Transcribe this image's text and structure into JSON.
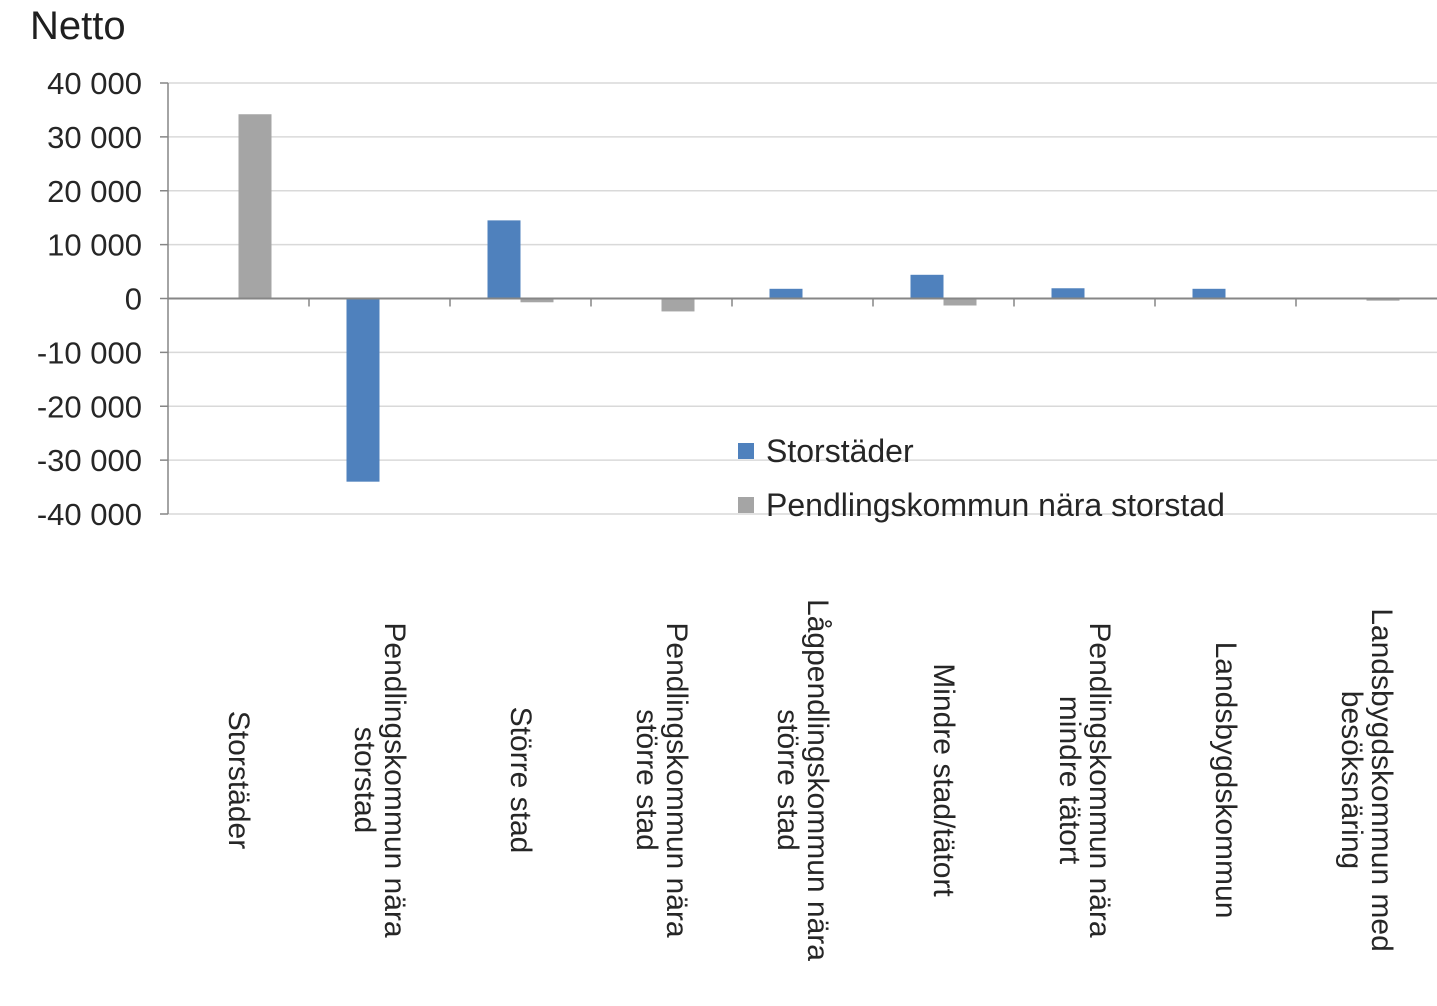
{
  "chart_data": {
    "type": "bar",
    "title": "Netto",
    "xlabel": "",
    "ylabel": "",
    "ylim": [
      -40000,
      40000
    ],
    "yticks": [
      40000,
      30000,
      20000,
      10000,
      0,
      -10000,
      -20000,
      -30000,
      -40000
    ],
    "ytick_labels": [
      "40 000",
      "30 000",
      "20 000",
      "10 000",
      "0",
      "-10 000",
      "-20 000",
      "-30 000",
      "-40 000"
    ],
    "grid": true,
    "legend_position": "center-right",
    "categories": [
      "Storstäder",
      "Pendlingskommun nära storstad",
      "Större stad",
      "Pendlingskommun nära större stad",
      "Lågpendlingskommun nära större stad",
      "Mindre stad/tätort",
      "Pendlingskommun nära mindre tätort",
      "Landsbygdskommun",
      "Landsbygdskommun med besöksnäring"
    ],
    "category_lines": [
      [
        "Storstäder"
      ],
      [
        "Pendlingskommun nära",
        "storstad"
      ],
      [
        "Större stad"
      ],
      [
        "Pendlingskommun nära",
        "större stad"
      ],
      [
        "Lågpendlingskommun nära",
        "större stad"
      ],
      [
        "Mindre stad/tätort"
      ],
      [
        "Pendlingskommun nära",
        "mindre tätort"
      ],
      [
        "Landsbygdskommun"
      ],
      [
        "Landsbygdskommun med",
        "besöksnäring"
      ]
    ],
    "series": [
      {
        "name": "Storstäder",
        "color": "#4f81bd",
        "values": [
          0,
          -34000,
          14500,
          0,
          1800,
          4400,
          1900,
          1800,
          0
        ]
      },
      {
        "name": "Pendlingskommun nära storstad",
        "color": "#a5a5a5",
        "values": [
          34200,
          0,
          -700,
          -2400,
          0,
          -1300,
          0,
          0,
          -400
        ]
      }
    ]
  }
}
